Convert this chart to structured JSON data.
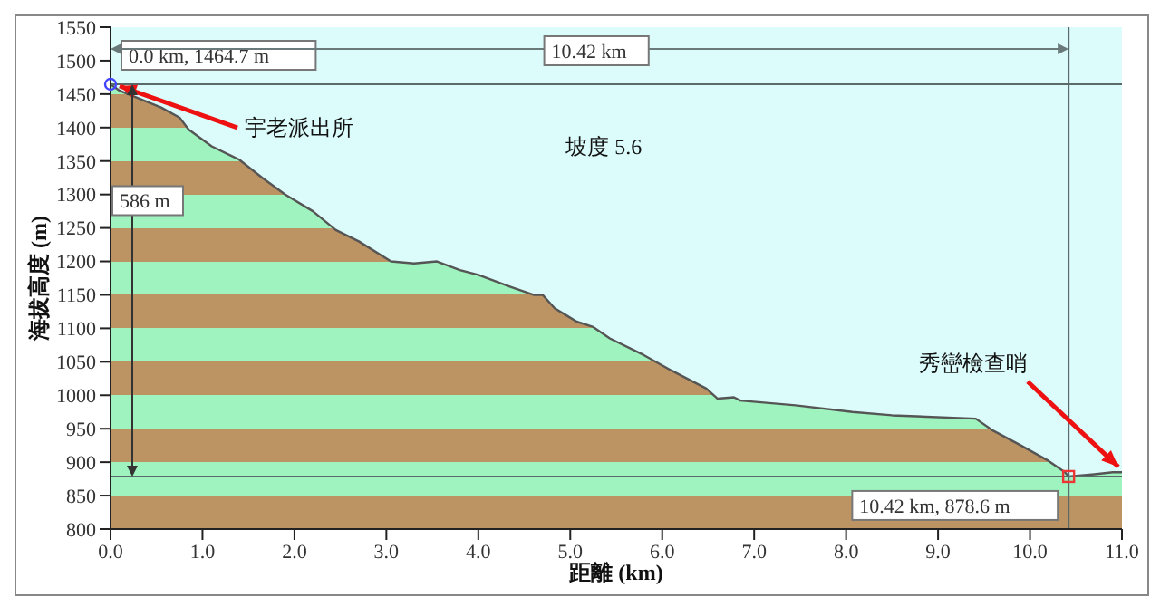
{
  "chart_data": {
    "type": "area",
    "xlabel": "距離 (km)",
    "ylabel": "海拔高度 (m)",
    "x": [
      0,
      0.1,
      0.55,
      0.75,
      0.85,
      1.1,
      1.4,
      1.65,
      1.9,
      2.2,
      2.45,
      2.7,
      3.05,
      3.3,
      3.55,
      3.8,
      4.0,
      4.35,
      4.6,
      4.7,
      4.83,
      4.95,
      5.07,
      5.25,
      5.43,
      5.8,
      6.1,
      6.48,
      6.6,
      6.78,
      6.85,
      7.45,
      8.07,
      8.5,
      9.41,
      9.6,
      9.9,
      10.2,
      10.38,
      10.42,
      10.7,
      10.9,
      11.0
    ],
    "series": [
      {
        "color": "#bc9363",
        "values": [
          1464.7,
          1455,
          1430,
          1415,
          1397,
          1372,
          1352,
          1325,
          1300,
          1275,
          1247,
          1230,
          1200,
          1197,
          1200,
          1187,
          1180,
          1162,
          1150,
          1150,
          1130,
          1120,
          1110,
          1102,
          1085,
          1060,
          1037,
          1010,
          995,
          997,
          992,
          985,
          975,
          970,
          965,
          947,
          925,
          902,
          885,
          878.6,
          882,
          885,
          885
        ]
      }
    ],
    "xlim": [
      0,
      11
    ],
    "ylim": [
      800,
      1550
    ],
    "xticks": [
      {
        "value": 0,
        "label": "0.0"
      },
      {
        "value": 1,
        "label": "1.0"
      },
      {
        "value": 2,
        "label": "2.0"
      },
      {
        "value": 3,
        "label": "3.0"
      },
      {
        "value": 4,
        "label": "4.0"
      },
      {
        "value": 5,
        "label": "5.0"
      },
      {
        "value": 6,
        "label": "6.0"
      },
      {
        "value": 7,
        "label": "7.0"
      },
      {
        "value": 8,
        "label": "8.0"
      },
      {
        "value": 9,
        "label": "9.0"
      },
      {
        "value": 10,
        "label": "10.0"
      },
      {
        "value": 11,
        "label": "11.0"
      }
    ],
    "yticks": [
      800,
      850,
      900,
      950,
      1000,
      1050,
      1100,
      1150,
      1200,
      1250,
      1300,
      1350,
      1400,
      1450,
      1500,
      1550
    ],
    "grid": false,
    "legend": false,
    "ref_lines": [
      {
        "axis": "y",
        "value": 1464.7,
        "color": "#5a6a6a"
      },
      {
        "axis": "y",
        "value": 878.6,
        "color": "#5a6a6a"
      },
      {
        "axis": "x",
        "value": 10.42,
        "color": "#5a6a6a"
      }
    ],
    "annotations": [
      "0.0 km, 1464.7 m",
      {
        "text": "宇老派出所",
        "x": 0,
        "y": 1464.7
      },
      "10.42 km, 878.6 m",
      {
        "text": "秀巒檢查哨",
        "x": 11.0,
        "y": 885
      },
      "10.42 km",
      "586 m",
      "坡度 5.6"
    ]
  }
}
